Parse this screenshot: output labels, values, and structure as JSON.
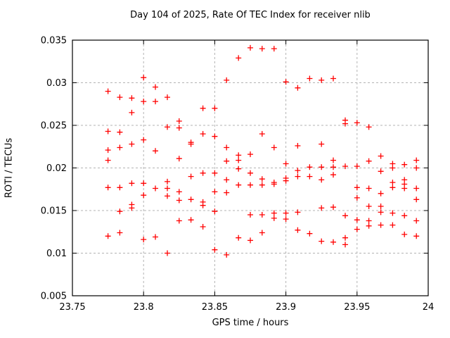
{
  "chart_data": {
    "type": "scatter",
    "title": "Day 104 of 2025, Rate Of TEC Index for receiver nlib",
    "xlabel": "GPS time / hours",
    "ylabel": "ROTI / TECUs",
    "xlim": [
      23.75,
      24
    ],
    "ylim": [
      0.005,
      0.035
    ],
    "xticks": [
      "23.75",
      "23.8",
      "23.85",
      "23.9",
      "23.95",
      "24"
    ],
    "yticks": [
      "0.005",
      "0.01",
      "0.015",
      "0.02",
      "0.025",
      "0.03",
      "0.035"
    ],
    "grid": true,
    "legend_position": "none",
    "marker": "plus",
    "marker_color": "#ff0000",
    "grid_color": "#b3b3b3",
    "axis_color": "#000000",
    "points": [
      [
        23.775,
        0.029
      ],
      [
        23.775,
        0.0243
      ],
      [
        23.775,
        0.0221
      ],
      [
        23.775,
        0.0209
      ],
      [
        23.775,
        0.0177
      ],
      [
        23.775,
        0.012
      ],
      [
        23.7833,
        0.0283
      ],
      [
        23.7833,
        0.0242
      ],
      [
        23.7833,
        0.0224
      ],
      [
        23.7833,
        0.0177
      ],
      [
        23.7833,
        0.0149
      ],
      [
        23.7833,
        0.0124
      ],
      [
        23.7917,
        0.0282
      ],
      [
        23.7917,
        0.0265
      ],
      [
        23.7917,
        0.0228
      ],
      [
        23.7917,
        0.0182
      ],
      [
        23.7917,
        0.0157
      ],
      [
        23.7917,
        0.0153
      ],
      [
        23.8,
        0.0306
      ],
      [
        23.8,
        0.0278
      ],
      [
        23.8,
        0.0233
      ],
      [
        23.8,
        0.0182
      ],
      [
        23.8,
        0.0168
      ],
      [
        23.8,
        0.0116
      ],
      [
        23.8083,
        0.0295
      ],
      [
        23.8083,
        0.0278
      ],
      [
        23.8083,
        0.022
      ],
      [
        23.8083,
        0.0176
      ],
      [
        23.8083,
        0.0119
      ],
      [
        23.8167,
        0.0283
      ],
      [
        23.8167,
        0.0248
      ],
      [
        23.8167,
        0.0184
      ],
      [
        23.8167,
        0.0176
      ],
      [
        23.8167,
        0.0167
      ],
      [
        23.8167,
        0.01
      ],
      [
        23.825,
        0.0255
      ],
      [
        23.825,
        0.0247
      ],
      [
        23.825,
        0.0211
      ],
      [
        23.825,
        0.0172
      ],
      [
        23.825,
        0.0162
      ],
      [
        23.825,
        0.0138
      ],
      [
        23.8333,
        0.023
      ],
      [
        23.8333,
        0.0228
      ],
      [
        23.8333,
        0.019
      ],
      [
        23.8333,
        0.0163
      ],
      [
        23.8333,
        0.0139
      ],
      [
        23.8417,
        0.027
      ],
      [
        23.8417,
        0.024
      ],
      [
        23.8417,
        0.0194
      ],
      [
        23.8417,
        0.016
      ],
      [
        23.8417,
        0.0156
      ],
      [
        23.8417,
        0.0131
      ],
      [
        23.85,
        0.027
      ],
      [
        23.85,
        0.0237
      ],
      [
        23.85,
        0.0194
      ],
      [
        23.85,
        0.0172
      ],
      [
        23.85,
        0.0149
      ],
      [
        23.85,
        0.0104
      ],
      [
        23.8583,
        0.0303
      ],
      [
        23.8583,
        0.0224
      ],
      [
        23.8583,
        0.0208
      ],
      [
        23.8583,
        0.0186
      ],
      [
        23.8583,
        0.0171
      ],
      [
        23.8583,
        0.0098
      ],
      [
        23.8667,
        0.0329
      ],
      [
        23.8667,
        0.0215
      ],
      [
        23.8667,
        0.0209
      ],
      [
        23.8667,
        0.0199
      ],
      [
        23.8667,
        0.018
      ],
      [
        23.8667,
        0.0118
      ],
      [
        23.875,
        0.0341
      ],
      [
        23.875,
        0.0216
      ],
      [
        23.875,
        0.0194
      ],
      [
        23.875,
        0.018
      ],
      [
        23.875,
        0.0145
      ],
      [
        23.875,
        0.0115
      ],
      [
        23.8833,
        0.034
      ],
      [
        23.8833,
        0.024
      ],
      [
        23.8833,
        0.0187
      ],
      [
        23.8833,
        0.018
      ],
      [
        23.8833,
        0.0145
      ],
      [
        23.8833,
        0.0124
      ],
      [
        23.8917,
        0.034
      ],
      [
        23.8917,
        0.0224
      ],
      [
        23.8917,
        0.0183
      ],
      [
        23.8917,
        0.0181
      ],
      [
        23.8917,
        0.0147
      ],
      [
        23.8917,
        0.0141
      ],
      [
        23.9,
        0.0301
      ],
      [
        23.9,
        0.0205
      ],
      [
        23.9,
        0.0188
      ],
      [
        23.9,
        0.0185
      ],
      [
        23.9,
        0.0147
      ],
      [
        23.9,
        0.014
      ],
      [
        23.9083,
        0.0294
      ],
      [
        23.9083,
        0.0226
      ],
      [
        23.9083,
        0.0197
      ],
      [
        23.9083,
        0.019
      ],
      [
        23.9083,
        0.0148
      ],
      [
        23.9083,
        0.0127
      ],
      [
        23.9167,
        0.0305
      ],
      [
        23.9167,
        0.0201
      ],
      [
        23.9167,
        0.019
      ],
      [
        23.9167,
        0.0123
      ],
      [
        23.925,
        0.0303
      ],
      [
        23.925,
        0.0228
      ],
      [
        23.925,
        0.0201
      ],
      [
        23.925,
        0.0186
      ],
      [
        23.925,
        0.0153
      ],
      [
        23.925,
        0.0114
      ],
      [
        23.9333,
        0.0305
      ],
      [
        23.9333,
        0.0209
      ],
      [
        23.9333,
        0.0201
      ],
      [
        23.9333,
        0.0192
      ],
      [
        23.9333,
        0.0154
      ],
      [
        23.9333,
        0.0113
      ],
      [
        23.9417,
        0.0256
      ],
      [
        23.9417,
        0.0252
      ],
      [
        23.9417,
        0.0202
      ],
      [
        23.9417,
        0.0144
      ],
      [
        23.9417,
        0.0118
      ],
      [
        23.9417,
        0.011
      ],
      [
        23.95,
        0.0253
      ],
      [
        23.95,
        0.0202
      ],
      [
        23.95,
        0.0177
      ],
      [
        23.95,
        0.0165
      ],
      [
        23.95,
        0.0139
      ],
      [
        23.95,
        0.0128
      ],
      [
        23.9583,
        0.0248
      ],
      [
        23.9583,
        0.0208
      ],
      [
        23.9583,
        0.0176
      ],
      [
        23.9583,
        0.0155
      ],
      [
        23.9583,
        0.0138
      ],
      [
        23.9583,
        0.0132
      ],
      [
        23.9667,
        0.0214
      ],
      [
        23.9667,
        0.0196
      ],
      [
        23.9667,
        0.017
      ],
      [
        23.9667,
        0.0155
      ],
      [
        23.9667,
        0.0148
      ],
      [
        23.9667,
        0.0133
      ],
      [
        23.975,
        0.0205
      ],
      [
        23.975,
        0.02
      ],
      [
        23.975,
        0.0183
      ],
      [
        23.975,
        0.0177
      ],
      [
        23.975,
        0.0147
      ],
      [
        23.975,
        0.0133
      ],
      [
        23.9833,
        0.0204
      ],
      [
        23.9833,
        0.0186
      ],
      [
        23.9833,
        0.0181
      ],
      [
        23.9833,
        0.0176
      ],
      [
        23.9833,
        0.0144
      ],
      [
        23.9833,
        0.0122
      ],
      [
        23.9917,
        0.0209
      ],
      [
        23.9917,
        0.02
      ],
      [
        23.9917,
        0.0176
      ],
      [
        23.9917,
        0.0163
      ],
      [
        23.9917,
        0.0138
      ],
      [
        23.9917,
        0.012
      ]
    ]
  }
}
